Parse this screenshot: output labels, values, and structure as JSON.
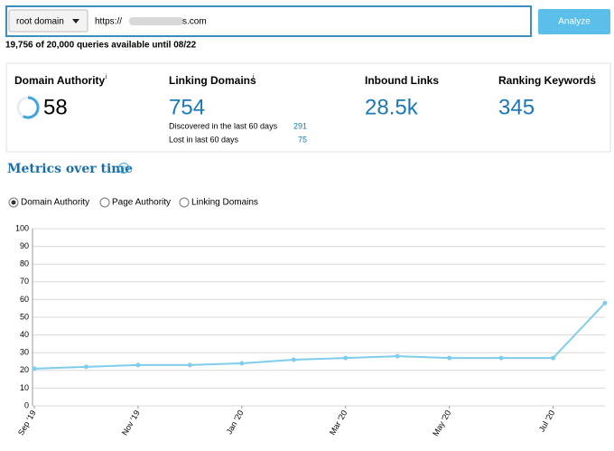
{
  "search": {
    "scope": "root domain",
    "url_prefix": "https://",
    "url_suffix": "s.com",
    "button": "Analyze",
    "quota": "19,756 of 20,000 queries available until 08/22"
  },
  "info_mark": "i",
  "metrics": {
    "domain_authority": {
      "label": "Domain Authority",
      "value": 58
    },
    "linking_domains": {
      "label": "Linking Domains",
      "value": 754,
      "discovered_label": "Discovered in the last 60 days",
      "discovered": 291,
      "lost_label": "Lost in last 60 days",
      "lost": 75
    },
    "inbound_links": {
      "label": "Inbound Links",
      "value": "28.5k"
    },
    "ranking_keywords": {
      "label": "Ranking Keywords",
      "value": 345
    }
  },
  "section_title": "Metrics over time",
  "help_mark": "?",
  "options": [
    "Domain Authority",
    "Page Authority",
    "Linking Domains"
  ],
  "chart_data": {
    "type": "line",
    "categories": [
      "Sep '19",
      null,
      "Nov '19",
      null,
      "Jan '20",
      null,
      "Mar '20",
      null,
      "May '20",
      null,
      "Jul '20",
      null
    ],
    "values": [
      21,
      22,
      23,
      23,
      24,
      26,
      27,
      28,
      27,
      27,
      27,
      58
    ],
    "color": "#7fcdec",
    "ylim": [
      0,
      100
    ],
    "yticks": [
      0,
      10,
      20,
      30,
      40,
      50,
      60,
      70,
      80,
      90,
      100
    ],
    "grid": true
  }
}
